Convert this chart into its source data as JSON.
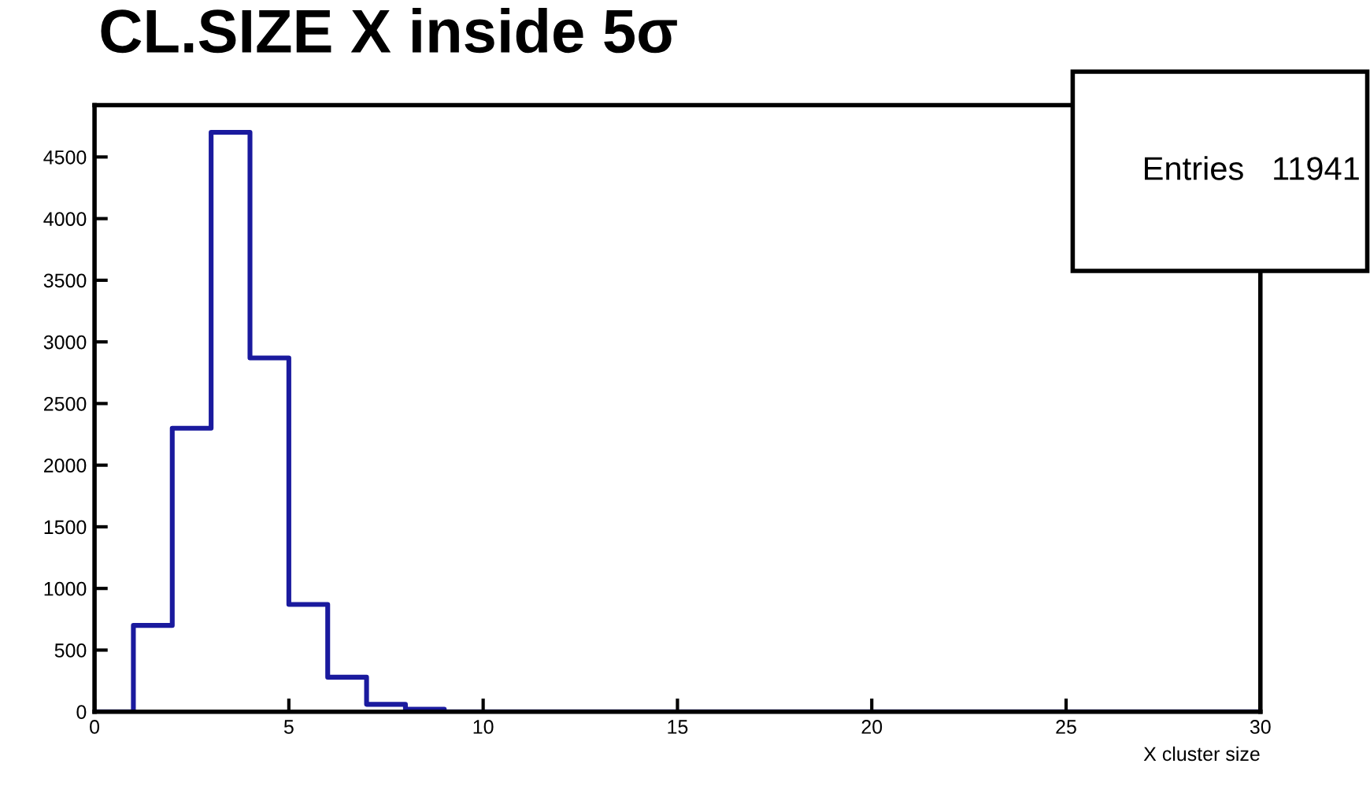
{
  "chart_data": {
    "type": "histogram",
    "title": "CL.SIZE X inside 5σ",
    "xlabel": "X cluster size",
    "bins": [
      0,
      1,
      2,
      3,
      4,
      5,
      6,
      7,
      8,
      9,
      10,
      11,
      12,
      13,
      14,
      15,
      16,
      17,
      18,
      19,
      20,
      21,
      22,
      23,
      24,
      25,
      26,
      27,
      28,
      29,
      30
    ],
    "values": [
      0,
      700,
      2300,
      4700,
      2870,
      870,
      280,
      60,
      20,
      0,
      0,
      0,
      0,
      0,
      0,
      0,
      0,
      0,
      0,
      0,
      0,
      0,
      0,
      0,
      0,
      0,
      0,
      0,
      0,
      0
    ],
    "color": "#1a1a9e",
    "xlim": [
      0,
      30
    ],
    "ylim": [
      0,
      4920
    ],
    "xticks": [
      0,
      5,
      10,
      15,
      20,
      25,
      30
    ],
    "yticks": [
      0,
      500,
      1000,
      1500,
      2000,
      2500,
      3000,
      3500,
      4000,
      4500
    ],
    "grid": false,
    "annotations": [
      "Entries   11941"
    ]
  }
}
